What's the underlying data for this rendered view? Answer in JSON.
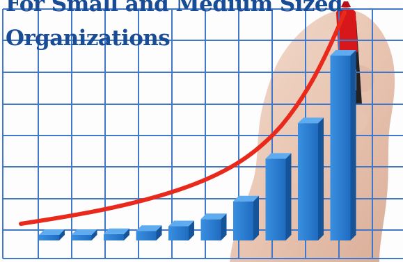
{
  "headline": {
    "line1": "For Small and Medium Sized",
    "line2": "Organizations"
  },
  "colors": {
    "headline_text": "#1a4c96",
    "grid_lines": "#3f78c8",
    "bars": "#2e7fd0",
    "trend_line": "#e8291c",
    "marker": "#d8171a"
  },
  "chart_data": {
    "type": "bar",
    "values": [
      1,
      1.3,
      1.8,
      2.7,
      4,
      6,
      11,
      23,
      33,
      52
    ],
    "trend": "rising exponential curve",
    "grid": true
  }
}
